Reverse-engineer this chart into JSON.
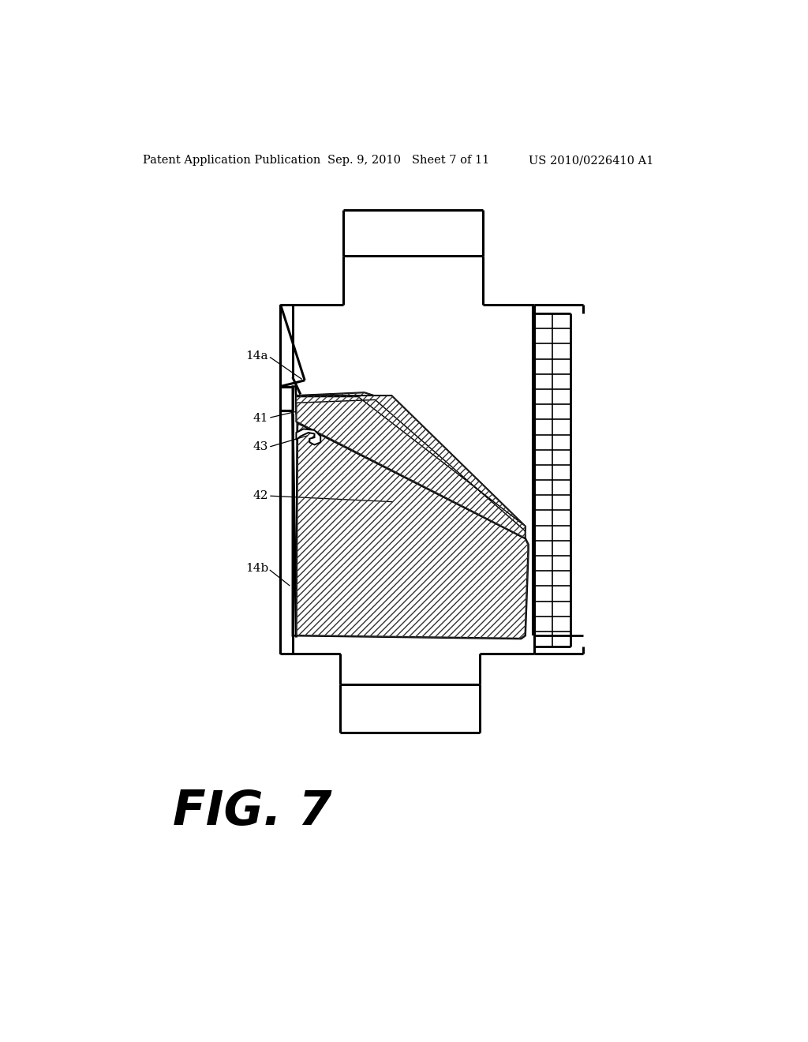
{
  "header_left": "Patent Application Publication",
  "header_mid": "Sep. 9, 2010   Sheet 7 of 11",
  "header_right": "US 2010/0226410 A1",
  "fig_label": "FIG. 7",
  "bg_color": "#ffffff"
}
